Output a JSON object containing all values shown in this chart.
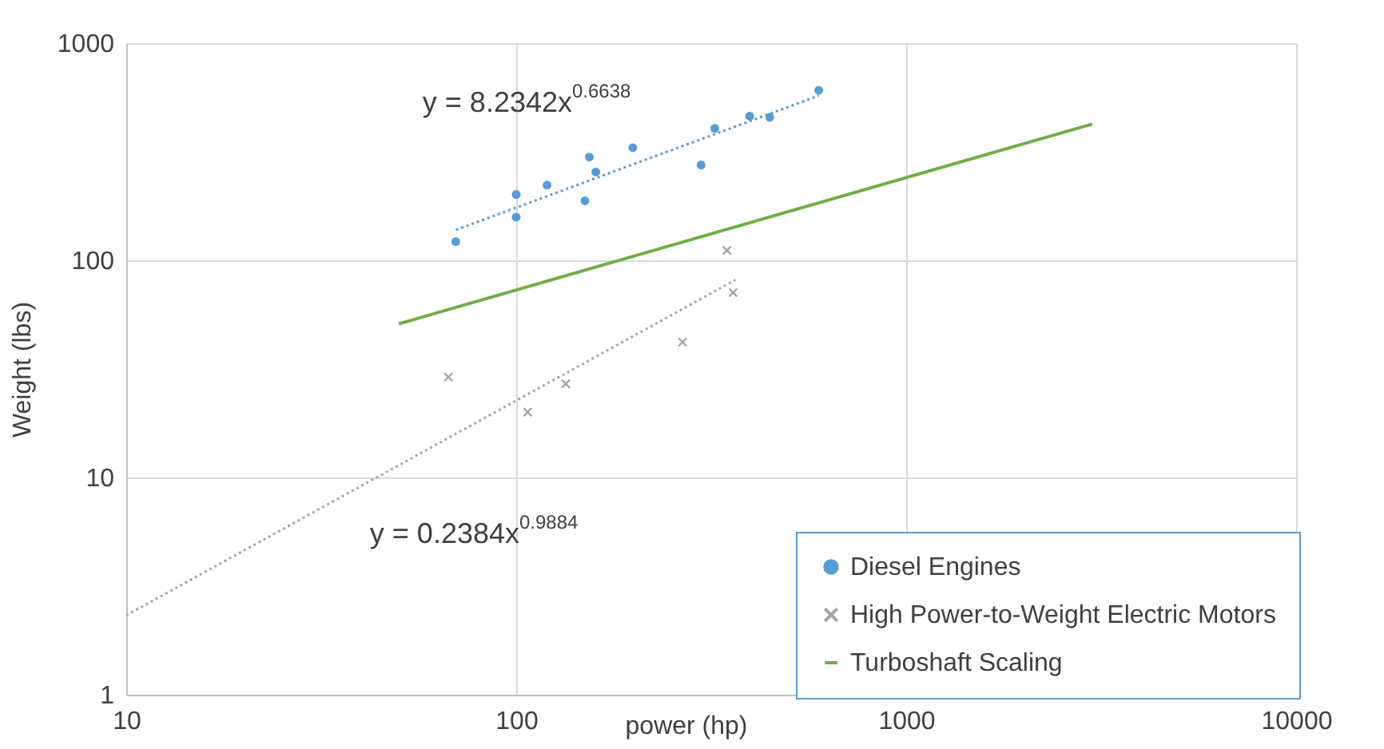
{
  "chart_data": {
    "type": "scatter",
    "xlabel": "power (hp)",
    "ylabel": "Weight (lbs)",
    "series": [
      {
        "name": "Diesel Engines",
        "marker": "circle",
        "color": "#5b9bd5",
        "x": [
          70,
          100,
          100,
          120,
          150,
          154,
          160,
          199,
          298,
          323,
          397,
          447,
          597
        ],
        "values": [
          122,
          201,
          158,
          222,
          188,
          299,
          255,
          330,
          275,
          405,
          461,
          455,
          606
        ]
      },
      {
        "name": "High Power-to-Weight Electric Motors",
        "marker": "cross",
        "color": "#a5a5a5",
        "x": [
          67,
          107,
          134,
          267,
          347,
          360
        ],
        "values": [
          29,
          20,
          27,
          42,
          111,
          71
        ]
      },
      {
        "name": "Turboshaft Scaling",
        "type": "line",
        "color": "#70ad47",
        "line_style": "solid",
        "x": [
          50,
          3000
        ],
        "values": [
          51,
          424
        ]
      },
      {
        "type": "line",
        "color": "#5b9bd5",
        "line_style": "dotted",
        "x": [
          70,
          597
        ],
        "values": [
          138,
          573
        ]
      },
      {
        "type": "line",
        "color": "#a5a5a5",
        "line_style": "dotted",
        "x": [
          10,
          365
        ],
        "values": [
          2.32,
          81.3
        ]
      }
    ],
    "annotations": [
      "y = 8.2342x$^{0.6638}$",
      "y = 0.2384x$^{0.9884}$"
    ],
    "xlim": [
      10,
      10000
    ],
    "xticks": [
      10,
      100,
      1000,
      10000
    ],
    "ylim": [
      1,
      1000
    ],
    "yticks": [
      1,
      10,
      100,
      1000
    ],
    "log": "xy",
    "grid": true,
    "legend": "bottom right"
  }
}
